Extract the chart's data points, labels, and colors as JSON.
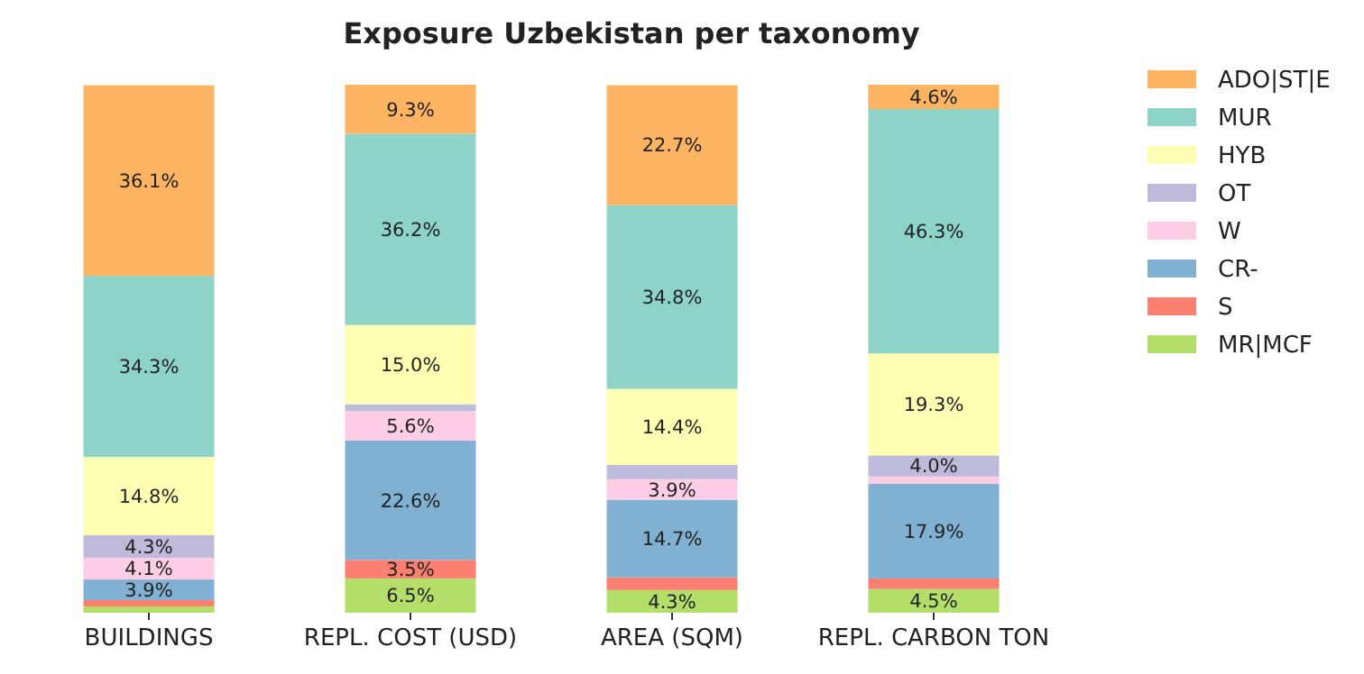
{
  "chart_data": {
    "type": "bar",
    "stacked": true,
    "title": "Exposure Uzbekistan per taxonomy",
    "categories": [
      "BUILDINGS",
      "REPL. COST (USD)",
      "AREA (SQM)",
      "REPL. CARBON TON"
    ],
    "ylim": [
      0,
      100
    ],
    "tick_labels": "x",
    "legend": "right",
    "series": [
      {
        "name": "MR|MCF",
        "color": "#b3de69",
        "values": [
          1.2,
          6.5,
          4.3,
          4.5
        ],
        "value_labels": [
          null,
          "6.5%",
          "4.3%",
          "4.5%"
        ]
      },
      {
        "name": "S",
        "color": "#fb8072",
        "values": [
          1.2,
          3.5,
          2.4,
          2.0
        ],
        "value_labels": [
          null,
          "3.5%",
          null,
          null
        ]
      },
      {
        "name": "CR-",
        "color": "#80b1d3",
        "values": [
          3.9,
          22.6,
          14.7,
          17.9
        ],
        "value_labels": [
          "3.9%",
          "22.6%",
          "14.7%",
          "17.9%"
        ]
      },
      {
        "name": "W",
        "color": "#fccde5",
        "values": [
          4.1,
          5.6,
          3.9,
          1.4
        ],
        "value_labels": [
          "4.1%",
          "5.6%",
          "3.9%",
          null
        ]
      },
      {
        "name": "OT",
        "color": "#bebada",
        "values": [
          4.3,
          1.3,
          2.7,
          4.0
        ],
        "value_labels": [
          "4.3%",
          null,
          null,
          "4.0%"
        ]
      },
      {
        "name": "HYB",
        "color": "#ffffb3",
        "values": [
          14.8,
          15.0,
          14.4,
          19.3
        ],
        "value_labels": [
          "14.8%",
          "15.0%",
          "14.4%",
          "19.3%"
        ]
      },
      {
        "name": "MUR",
        "color": "#8dd3c7",
        "values": [
          34.3,
          36.2,
          34.8,
          46.3
        ],
        "value_labels": [
          "34.3%",
          "36.2%",
          "34.8%",
          "46.3%"
        ]
      },
      {
        "name": "ADO|ST|E",
        "color": "#fdb462",
        "values": [
          36.1,
          9.3,
          22.7,
          4.6
        ],
        "value_labels": [
          "36.1%",
          "9.3%",
          "22.7%",
          "4.6%"
        ]
      }
    ]
  }
}
